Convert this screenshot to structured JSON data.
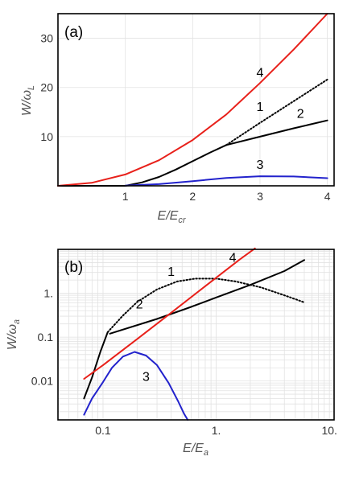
{
  "chart_data": [
    {
      "type": "line",
      "panel_label": "(a)",
      "xlabel_main": "E/E",
      "xlabel_sub": "cr",
      "ylabel_main": "W/ω",
      "ylabel_sub": "L",
      "xlim": [
        0,
        4.1
      ],
      "ylim": [
        0,
        35
      ],
      "x_ticks": [
        1,
        2,
        3,
        4
      ],
      "y_ticks": [
        10,
        20,
        30
      ],
      "grid": true,
      "series": [
        {
          "name": "1",
          "color": "#000000",
          "style": "solid",
          "x": [
            0,
            0.5,
            1.0,
            1.25,
            1.5,
            1.75,
            2.0,
            2.25,
            2.5
          ],
          "y": [
            0,
            0,
            0,
            0.7,
            1.8,
            3.3,
            5.0,
            6.7,
            8.3
          ]
        },
        {
          "name": "1",
          "color": "#000000",
          "style": "dotted",
          "x": [
            2.5,
            3.0,
            3.5,
            4.0
          ],
          "y": [
            8.3,
            12.8,
            17.2,
            21.6
          ]
        },
        {
          "name": "2",
          "color": "#000000",
          "style": "solid",
          "x": [
            2.5,
            3.0,
            3.5,
            4.0
          ],
          "y": [
            8.3,
            10.0,
            11.7,
            13.3
          ]
        },
        {
          "name": "3",
          "color": "#2222cc",
          "style": "solid",
          "x": [
            1.0,
            1.5,
            2.0,
            2.5,
            3.0,
            3.5,
            4.0
          ],
          "y": [
            0.05,
            0.35,
            0.95,
            1.6,
            1.95,
            1.9,
            1.55
          ]
        },
        {
          "name": "4",
          "color": "#e8201a",
          "style": "solid",
          "x": [
            0,
            0.5,
            1.0,
            1.5,
            2.0,
            2.5,
            3.0,
            3.5,
            4.0
          ],
          "y": [
            0,
            0.6,
            2.3,
            5.2,
            9.3,
            14.5,
            20.9,
            27.7,
            35
          ]
        }
      ],
      "annotations": [
        {
          "text": "4",
          "x": 3.0,
          "y": 22.2
        },
        {
          "text": "1",
          "x": 3.0,
          "y": 15.2
        },
        {
          "text": "2",
          "x": 3.6,
          "y": 13.8
        },
        {
          "text": "3",
          "x": 3.0,
          "y": 3.4
        }
      ]
    },
    {
      "type": "line",
      "panel_label": "(b)",
      "xscale": "log",
      "yscale": "log",
      "xlabel_main": "E/E",
      "xlabel_sub": "a",
      "ylabel_main": "W/ω",
      "ylabel_sub": "a",
      "xlim": [
        0.04,
        11
      ],
      "ylim": [
        0.0013,
        10
      ],
      "x_ticks": [
        0.1,
        1.0,
        10.0
      ],
      "x_tick_labels": [
        "0.1",
        "1.",
        "10."
      ],
      "y_ticks": [
        0.01,
        0.1,
        1.0
      ],
      "y_tick_labels": [
        "0.01",
        "0.1",
        "1."
      ],
      "grid": true,
      "series": [
        {
          "name": "1",
          "color": "#000000",
          "style": "solid",
          "x": [
            0.068,
            0.08,
            0.095,
            0.11
          ],
          "y": [
            0.004,
            0.012,
            0.047,
            0.13
          ]
        },
        {
          "name": "1",
          "color": "#000000",
          "style": "dotted",
          "x": [
            0.11,
            0.15,
            0.2,
            0.3,
            0.45,
            0.65,
            1.0,
            1.5,
            2.5,
            4.0,
            6.0
          ],
          "y": [
            0.13,
            0.31,
            0.63,
            1.22,
            1.85,
            2.15,
            2.15,
            1.85,
            1.35,
            0.9,
            0.62
          ]
        },
        {
          "name": "2",
          "color": "#000000",
          "style": "solid",
          "x": [
            0.115,
            0.3,
            0.6,
            1.0,
            2.0,
            4.0,
            6.0
          ],
          "y": [
            0.12,
            0.26,
            0.49,
            0.8,
            1.55,
            3.2,
            5.7
          ]
        },
        {
          "name": "3",
          "color": "#2222cc",
          "style": "solid",
          "x": [
            0.068,
            0.08,
            0.1,
            0.12,
            0.15,
            0.19,
            0.24,
            0.3,
            0.38,
            0.46,
            0.52,
            0.56
          ],
          "y": [
            0.0017,
            0.004,
            0.0095,
            0.02,
            0.036,
            0.046,
            0.038,
            0.023,
            0.009,
            0.0035,
            0.0018,
            0.0013
          ]
        },
        {
          "name": "4",
          "color": "#e8201a",
          "style": "solid",
          "x": [
            0.068,
            0.1,
            0.2,
            0.4,
            0.8,
            1.6,
            2.2
          ],
          "y": [
            0.0112,
            0.023,
            0.09,
            0.36,
            1.45,
            5.8,
            10.5
          ]
        }
      ],
      "annotations": [
        {
          "text": "1",
          "x": 0.4,
          "y": 2.5
        },
        {
          "text": "4",
          "x": 1.4,
          "y": 5.2
        },
        {
          "text": "2",
          "x": 0.21,
          "y": 0.45
        },
        {
          "text": "3",
          "x": 0.24,
          "y": 0.01
        }
      ]
    }
  ]
}
